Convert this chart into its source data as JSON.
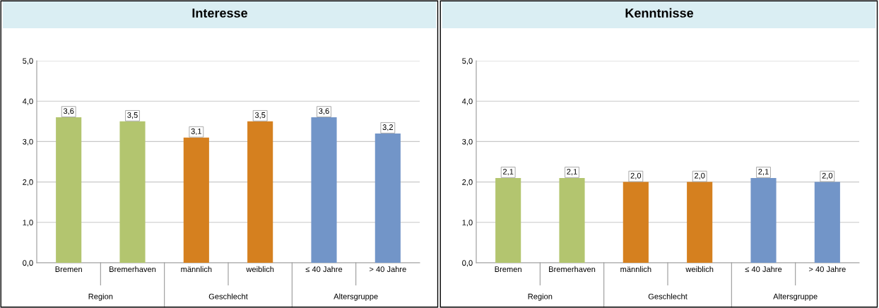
{
  "chart_data": [
    {
      "type": "bar",
      "title": "Interesse",
      "categories": [
        "Bremen",
        "Bremerhaven",
        "männlich",
        "weiblich",
        "≤ 40 Jahre",
        "> 40 Jahre"
      ],
      "values": [
        3.6,
        3.5,
        3.1,
        3.5,
        3.6,
        3.2
      ],
      "colors": [
        "#b3c56f",
        "#b3c56f",
        "#d5801f",
        "#d5801f",
        "#7295c8",
        "#7295c8"
      ],
      "value_labels": [
        "3,6",
        "3,5",
        "3,1",
        "3,5",
        "3,6",
        "3,2"
      ],
      "ylim": [
        0,
        5
      ],
      "yticks": [
        {
          "value": 0,
          "label": "0,0"
        },
        {
          "value": 1,
          "label": "1,0"
        },
        {
          "value": 2,
          "label": "2,0"
        },
        {
          "value": 3,
          "label": "3,0"
        },
        {
          "value": 4,
          "label": "4,0"
        },
        {
          "value": 5,
          "label": "5,0"
        }
      ],
      "grid": "y",
      "annotations": [
        "Region",
        "Geschlecht",
        "Altersgruppe"
      ]
    },
    {
      "type": "bar",
      "title": "Kenntnisse",
      "categories": [
        "Bremen",
        "Bremerhaven",
        "männlich",
        "weiblich",
        "≤ 40 Jahre",
        "> 40 Jahre"
      ],
      "values": [
        2.1,
        2.1,
        2.0,
        2.0,
        2.1,
        2.0
      ],
      "colors": [
        "#b3c56f",
        "#b3c56f",
        "#d5801f",
        "#d5801f",
        "#7295c8",
        "#7295c8"
      ],
      "value_labels": [
        "2,1",
        "2,1",
        "2,0",
        "2,0",
        "2,1",
        "2,0"
      ],
      "ylim": [
        0,
        5
      ],
      "yticks": [
        {
          "value": 0,
          "label": "0,0"
        },
        {
          "value": 1,
          "label": "1,0"
        },
        {
          "value": 2,
          "label": "2,0"
        },
        {
          "value": 3,
          "label": "3,0"
        },
        {
          "value": 4,
          "label": "4,0"
        },
        {
          "value": 5,
          "label": "5,0"
        }
      ],
      "grid": "y",
      "annotations": [
        "Region",
        "Geschlecht",
        "Altersgruppe"
      ]
    }
  ]
}
